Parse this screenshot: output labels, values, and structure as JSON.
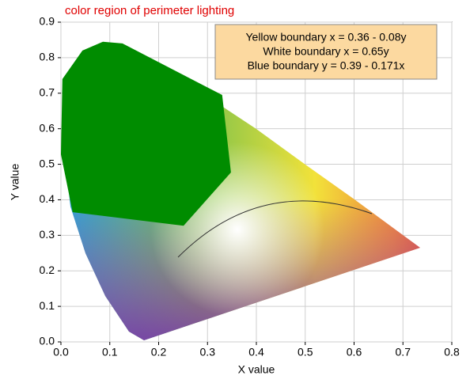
{
  "chart_data": {
    "type": "polygon",
    "title": "color region of perimeter lighting",
    "x_label": "X value",
    "y_label": "Y value",
    "annotation": [
      "Yellow boundary x = 0.36 - 0.08y",
      "White boundary x = 0.65y",
      "Blue boundary y = 0.39 - 0.171x"
    ],
    "x": [
      0.0,
      0.003,
      0.044,
      0.086,
      0.126,
      0.33,
      0.348,
      0.251,
      0.024
    ],
    "values": [
      0.528,
      0.74,
      0.82,
      0.845,
      0.84,
      0.695,
      0.477,
      0.327,
      0.365
    ],
    "color": "#008c00",
    "xlim": [
      0,
      0.8
    ],
    "xticks": [
      {
        "value": 0,
        "label": "0.0"
      },
      0.1,
      0.2,
      0.3,
      0.4,
      0.5,
      0.6,
      0.7,
      0.8
    ],
    "ylim": [
      0,
      0.9
    ],
    "yticks": [
      {
        "value": 0,
        "label": "0.0"
      },
      0.1,
      0.2,
      0.3,
      0.4,
      0.5,
      0.6,
      0.7,
      0.8,
      0.9
    ],
    "grid": true
  }
}
